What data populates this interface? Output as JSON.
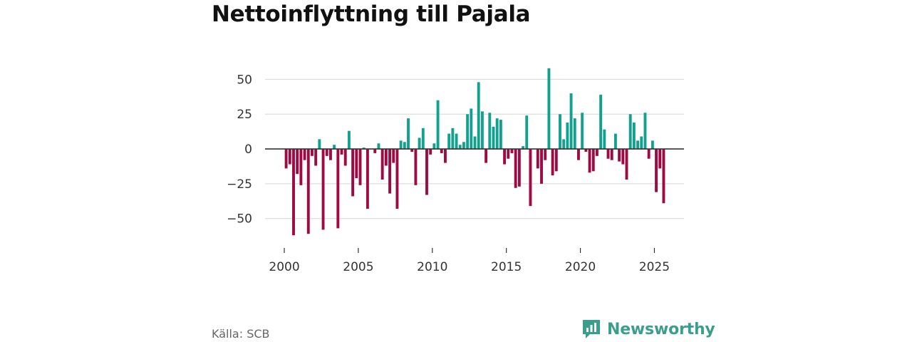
{
  "chart_data": {
    "type": "bar",
    "title": "Nettoinflyttning till Pajala",
    "source": "Källa: SCB",
    "brand": "Newsworthy",
    "xlabel": "",
    "ylabel": "",
    "xlim": [
      1998.7,
      2027.0
    ],
    "ylim": [
      -66,
      63
    ],
    "yticks": [
      -50,
      -25,
      0,
      25,
      50
    ],
    "ytick_labels": [
      "−50",
      "−25",
      "0",
      "25",
      "50"
    ],
    "xticks": [
      2000,
      2005,
      2010,
      2015,
      2020,
      2025
    ],
    "xtick_labels": [
      "2000",
      "2005",
      "2010",
      "2015",
      "2020",
      "2025"
    ],
    "grid": true,
    "colors": {
      "positive": "#12a08f",
      "negative": "#a00a43",
      "grid": "#dddddd",
      "zero": "#333333",
      "text": "#333333"
    },
    "bar_width_months": 0.75,
    "x_start": 2000.0,
    "x_step": 0.25,
    "values": [
      -14,
      -11,
      -62,
      -18,
      -26,
      -8,
      -61,
      -5,
      -12,
      7,
      -58,
      -5,
      -8,
      3,
      -57,
      -4,
      -12,
      13,
      -34,
      -21,
      -26,
      1,
      -43,
      0,
      -3,
      4,
      -22,
      -12,
      -32,
      -10,
      -43,
      6,
      5,
      22,
      -2,
      -26,
      8,
      15,
      -33,
      -4,
      4,
      35,
      -3,
      -10,
      11,
      15,
      11,
      3,
      5,
      25,
      29,
      9,
      48,
      27,
      -10,
      26,
      16,
      22,
      21,
      -11,
      -7,
      -3,
      -28,
      -27,
      2,
      24,
      -41,
      0,
      -14,
      -25,
      -8,
      58,
      -19,
      -16,
      25,
      7,
      19,
      40,
      22,
      -8,
      26,
      -2,
      -17,
      -16,
      -5,
      39,
      14,
      -7,
      -8,
      11,
      -9,
      -11,
      -22,
      25,
      19,
      6,
      9,
      26,
      -7,
      6,
      -31,
      -14,
      -39
    ]
  }
}
